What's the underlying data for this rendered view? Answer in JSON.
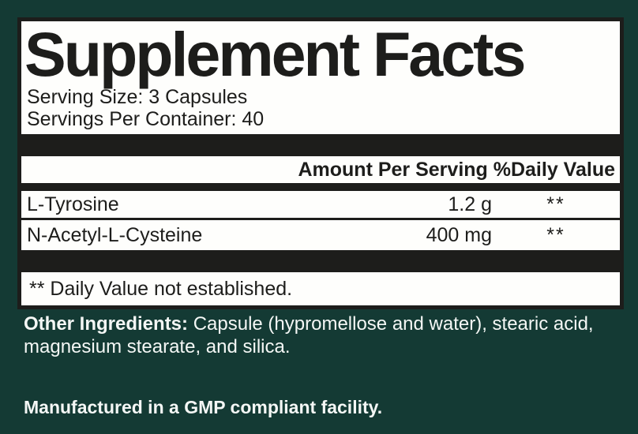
{
  "colors": {
    "background_green": "#143A34",
    "bar_black": "#1D1D1B",
    "panel_white": "#FEFEFC",
    "footer_text_white": "#F4F7F5"
  },
  "panel": {
    "title": "Supplement Facts",
    "serving_size": "Serving Size: 3 Capsules",
    "servings_per_container": "Servings Per Container: 40",
    "column_header": "Amount Per Serving %Daily Value",
    "rows": [
      {
        "name": "L-Tyrosine",
        "amount": "1.2 g",
        "daily_value": "**"
      },
      {
        "name": "N-Acetyl-L-Cysteine",
        "amount": "400 mg",
        "daily_value": "**"
      }
    ],
    "footnote": "** Daily Value not established."
  },
  "footer": {
    "other_ingredients_label": "Other Ingredients:",
    "other_ingredients_line1_rest": " Capsule (hypromellose and water), stearic acid,",
    "other_ingredients_line2": "magnesium stearate, and silica.",
    "manufactured": "Manufactured in a GMP compliant facility."
  }
}
